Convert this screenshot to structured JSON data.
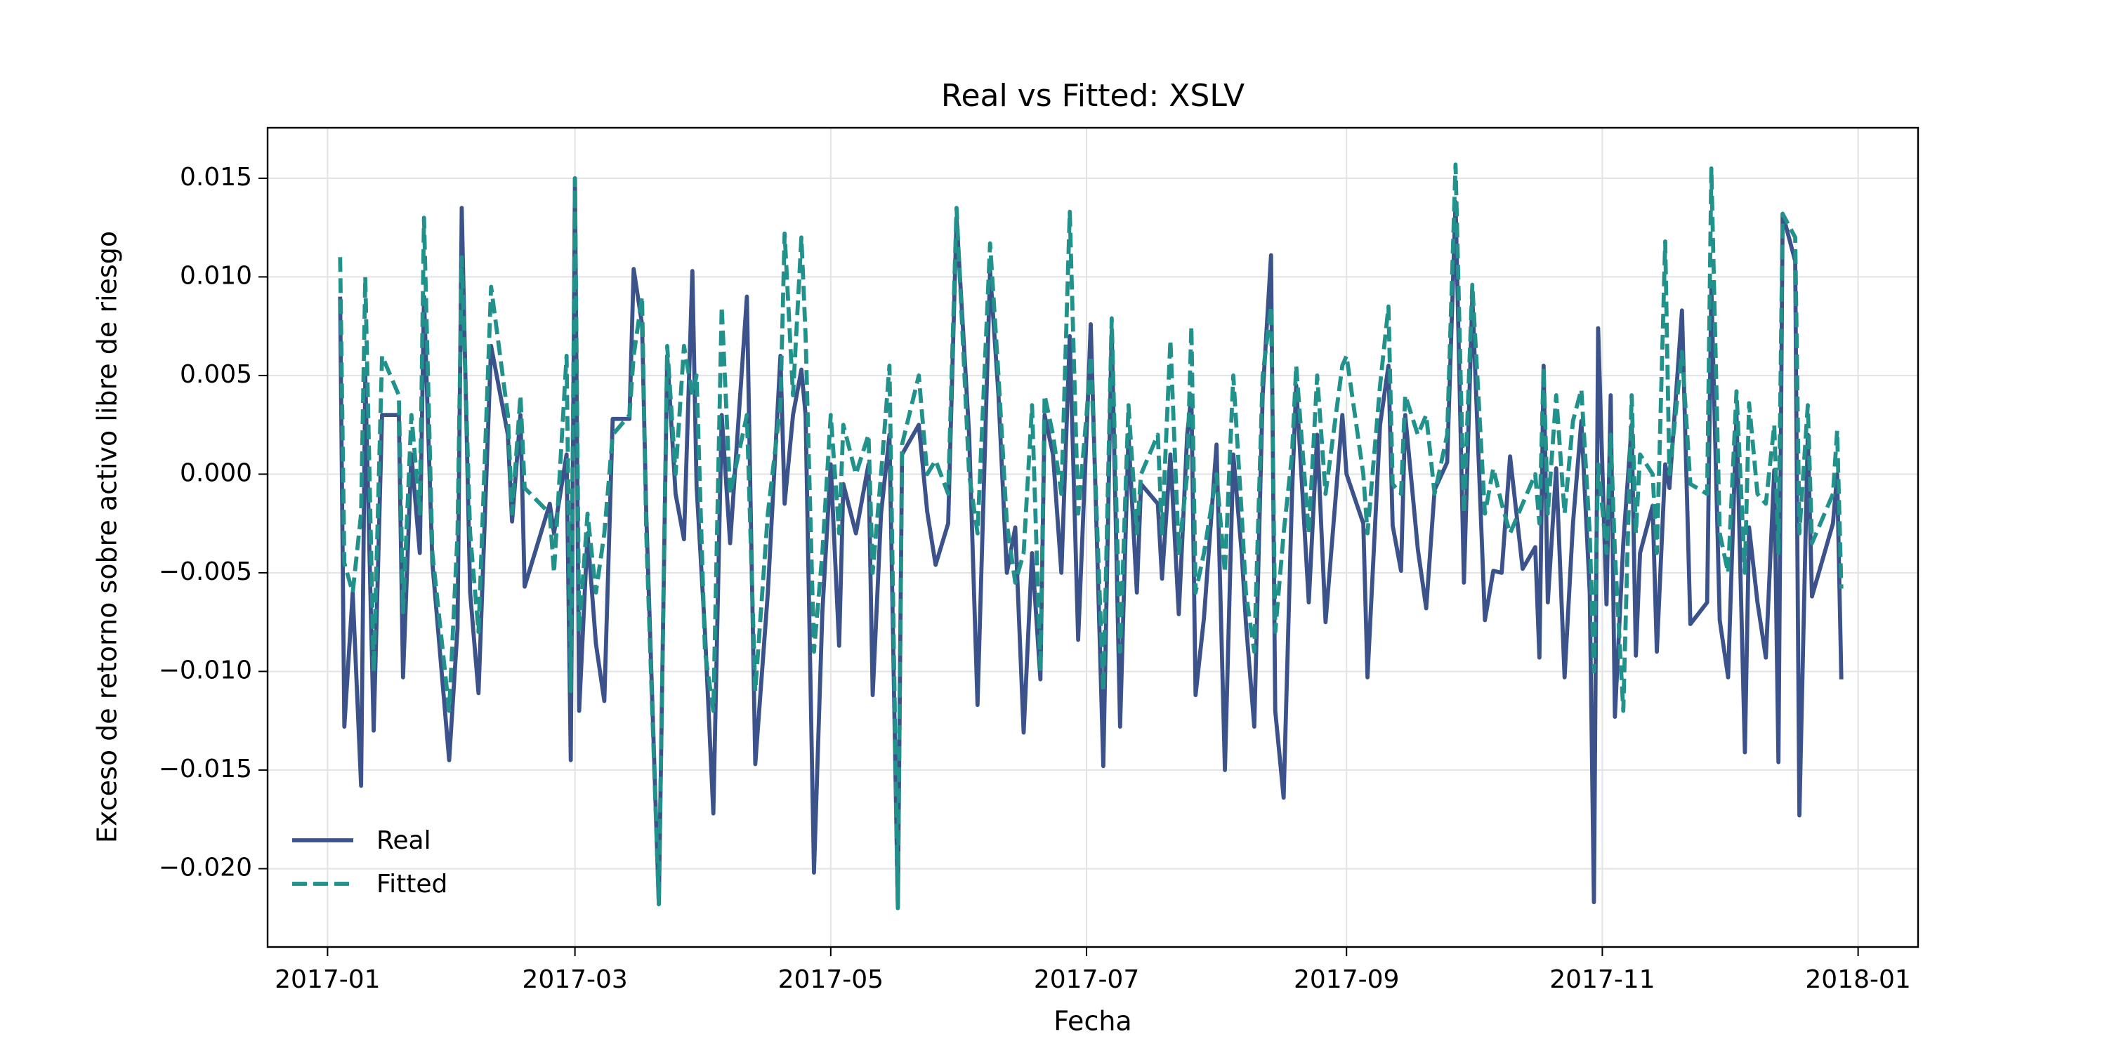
{
  "chart_data": {
    "type": "line",
    "title": "Real vs Fitted: XSLV",
    "x_label": "Fecha",
    "y_label": "Exceso de retorno sobre activo libre de riesgo",
    "x": [
      3,
      4,
      6,
      8,
      9,
      11,
      13,
      17,
      18,
      20,
      22,
      23,
      25,
      29,
      31,
      32,
      34,
      36,
      39,
      43,
      44,
      46,
      47,
      53,
      54,
      57,
      58,
      59,
      60,
      62,
      64,
      66,
      68,
      72,
      73,
      75,
      76,
      79,
      81,
      83,
      85,
      87,
      88,
      90,
      92,
      94,
      96,
      100,
      102,
      105,
      108,
      109,
      111,
      113,
      114,
      116,
      118,
      120,
      122,
      123,
      126,
      129,
      130,
      132,
      134,
      136,
      137,
      141,
      143,
      145,
      148,
      150,
      153,
      155,
      158,
      160,
      162,
      164,
      166,
      168,
      170,
      171,
      173,
      175,
      177,
      179,
      181,
      182,
      185,
      187,
      189,
      191,
      193,
      194,
      198,
      199,
      201,
      203,
      205,
      206,
      207,
      209,
      212,
      214,
      216,
      218,
      219,
      221,
      223,
      225,
      226,
      228,
      230,
      231,
      234,
      236,
      238,
      242,
      243,
      247,
      248,
      251,
      253,
      254,
      256,
      257,
      260,
      262,
      264,
      267,
      269,
      271,
      273,
      276,
      278,
      280,
      282,
      285,
      288,
      289,
      290,
      291,
      293,
      295,
      297,
      299,
      301,
      302,
      303,
      305,
      306,
      307,
      309,
      311,
      312,
      313,
      316,
      317,
      319,
      320,
      323,
      325,
      329,
      330,
      332,
      334,
      336,
      338,
      339,
      341,
      343,
      345,
      346,
      347,
      350,
      351,
      353,
      354,
      359,
      360,
      361
    ],
    "series": [
      {
        "name": "Real",
        "color": "#3b528b",
        "dashed": false,
        "values": [
          0.009,
          -0.0128,
          -0.006,
          -0.0158,
          0.005,
          -0.013,
          0.003,
          0.003,
          -0.0103,
          0.001,
          -0.004,
          0.009,
          -0.0045,
          -0.0145,
          -0.0078,
          0.0135,
          -0.006,
          -0.0111,
          0.0065,
          0.002,
          -0.0024,
          0.003,
          -0.0057,
          -0.0015,
          -0.003,
          0.001,
          -0.0145,
          0.015,
          -0.012,
          -0.003,
          -0.0086,
          -0.0115,
          0.0028,
          0.0028,
          0.0104,
          0.0076,
          -0.002,
          -0.0218,
          0.006,
          -0.001,
          -0.0033,
          0.0103,
          -0.0006,
          -0.008,
          -0.0172,
          0.003,
          -0.0035,
          0.009,
          -0.0147,
          -0.006,
          0.006,
          -0.0015,
          0.003,
          0.0053,
          0.003,
          -0.0202,
          -0.007,
          0.0005,
          -0.0087,
          -0.0005,
          -0.003,
          0.0005,
          -0.0112,
          -0.002,
          0.002,
          -0.022,
          0.001,
          0.0025,
          -0.0019,
          -0.0046,
          -0.0025,
          0.013,
          0.002,
          -0.0117,
          0.0103,
          0.004,
          -0.005,
          -0.0027,
          -0.0131,
          -0.004,
          -0.0104,
          0.003,
          0.001,
          -0.005,
          0.007,
          -0.0084,
          0.002,
          0.0076,
          -0.0148,
          0.0073,
          -0.0128,
          0.002,
          -0.006,
          -0.0005,
          -0.0015,
          -0.0053,
          0.001,
          -0.0071,
          0.002,
          0.004,
          -0.0112,
          -0.0073,
          0.0015,
          -0.015,
          0.001,
          -0.004,
          -0.0075,
          -0.0128,
          0.004,
          0.0111,
          -0.012,
          -0.0164,
          -0.001,
          0.0045,
          -0.0065,
          0.002,
          -0.0075,
          0.003,
          0,
          -0.0025,
          -0.0103,
          0.0025,
          0.0055,
          -0.0026,
          -0.0049,
          0.003,
          -0.0038,
          -0.0068,
          -0.0008,
          0.0006,
          0.0138,
          -0.0055,
          0.009,
          -0.0074,
          -0.0049,
          -0.005,
          0.0009,
          -0.0048,
          -0.0037,
          -0.0093,
          0.0055,
          -0.0065,
          0.0003,
          -0.0103,
          -0.0025,
          0.0027,
          -0.006,
          -0.0217,
          0.0074,
          -0.0066,
          0.004,
          -0.0123,
          -0.0035,
          0.0025,
          -0.0092,
          -0.004,
          -0.0016,
          -0.009,
          0.0005,
          -0.0007,
          0.0083,
          -0.0076,
          -0.0065,
          0.0095,
          -0.0074,
          -0.0103,
          0.003,
          -0.0141,
          -0.0027,
          -0.0065,
          -0.0093,
          0.0002,
          -0.0146,
          0.0132,
          0.0108,
          -0.0173,
          0.002,
          -0.0062,
          -0.0025,
          0,
          -0.0104
        ]
      },
      {
        "name": "Fitted",
        "color": "#21918c",
        "dashed": true,
        "values": [
          0.011,
          -0.0045,
          -0.006,
          -0.002,
          0.01,
          -0.01,
          0.006,
          0.004,
          -0.007,
          0.003,
          -0.002,
          0.013,
          -0.004,
          -0.012,
          -0.003,
          0.011,
          -0.003,
          -0.008,
          0.0095,
          0.003,
          -0.002,
          0.004,
          -0.0007,
          -0.002,
          -0.005,
          0.006,
          -0.011,
          0.015,
          -0.008,
          -0.002,
          -0.006,
          -0.003,
          0.002,
          0.003,
          0.006,
          0.009,
          -0.003,
          -0.0218,
          0.0065,
          0,
          0.0065,
          0.004,
          0.005,
          -0.009,
          -0.012,
          0.0085,
          -0.001,
          0.003,
          -0.011,
          -0.002,
          0.0035,
          0.0122,
          0.004,
          0.012,
          0.007,
          -0.009,
          -0.004,
          0.003,
          -0.003,
          0.0025,
          0,
          0.002,
          -0.005,
          0,
          0.0055,
          -0.022,
          0.0015,
          0.005,
          0,
          0.0007,
          -0.001,
          0.0135,
          0,
          -0.003,
          0.0117,
          0.005,
          -0.0025,
          -0.0055,
          -0.004,
          0.0035,
          -0.01,
          0.004,
          0.002,
          -0.001,
          0.0133,
          -0.002,
          0.003,
          0.006,
          -0.011,
          0.0079,
          -0.009,
          0.0035,
          -0.003,
          0,
          0.002,
          -0.003,
          0.0068,
          -0.004,
          0,
          0.0075,
          -0.006,
          -0.004,
          0,
          -0.005,
          0.005,
          -0.002,
          -0.006,
          -0.009,
          0.005,
          0.0085,
          -0.008,
          -0.003,
          0.001,
          0.0055,
          -0.003,
          0.005,
          -0.001,
          0.0055,
          0.006,
          0,
          -0.003,
          0.0045,
          0.0085,
          -0.0005,
          -0.001,
          0.004,
          0.002,
          0.003,
          -0.001,
          0.002,
          0.0157,
          -0.002,
          0.0096,
          -0.002,
          0.0003,
          -0.0015,
          -0.003,
          -0.0015,
          0,
          -0.0025,
          0.0054,
          -0.002,
          0.004,
          -0.002,
          0.0027,
          0.0043,
          -0.003,
          -0.01,
          0.0005,
          -0.004,
          0.002,
          -0.004,
          -0.012,
          0.004,
          -0.003,
          0.001,
          0,
          -0.004,
          0.0118,
          0,
          0.0062,
          -0.0005,
          -0.001,
          0.0155,
          -0.003,
          -0.005,
          0.0042,
          -0.005,
          0.0036,
          -0.001,
          -0.0015,
          0.0025,
          -0.004,
          0.0132,
          0.012,
          -0.003,
          0.0035,
          -0.0035,
          -0.001,
          0.0022,
          -0.0058
        ]
      }
    ],
    "xlim": [
      -14.3,
      379.3
    ],
    "xticks": [
      {
        "value": 0,
        "label": "2017-01"
      },
      {
        "value": 59,
        "label": "2017-03"
      },
      {
        "value": 120,
        "label": "2017-05"
      },
      {
        "value": 181,
        "label": "2017-07"
      },
      {
        "value": 243,
        "label": "2017-09"
      },
      {
        "value": 304,
        "label": "2017-11"
      },
      {
        "value": 365,
        "label": "2018-01"
      }
    ],
    "ylim": [
      -0.02397,
      0.01756
    ],
    "yticks": [
      {
        "value": -0.02,
        "label": "−0.020"
      },
      {
        "value": -0.015,
        "label": "−0.015"
      },
      {
        "value": -0.01,
        "label": "−0.010"
      },
      {
        "value": -0.005,
        "label": "−0.005"
      },
      {
        "value": 0,
        "label": "0.000"
      },
      {
        "value": 0.005,
        "label": "0.005"
      },
      {
        "value": 0.01,
        "label": "0.010"
      },
      {
        "value": 0.015,
        "label": "0.015"
      }
    ],
    "grid": true,
    "legend": "lower left"
  }
}
